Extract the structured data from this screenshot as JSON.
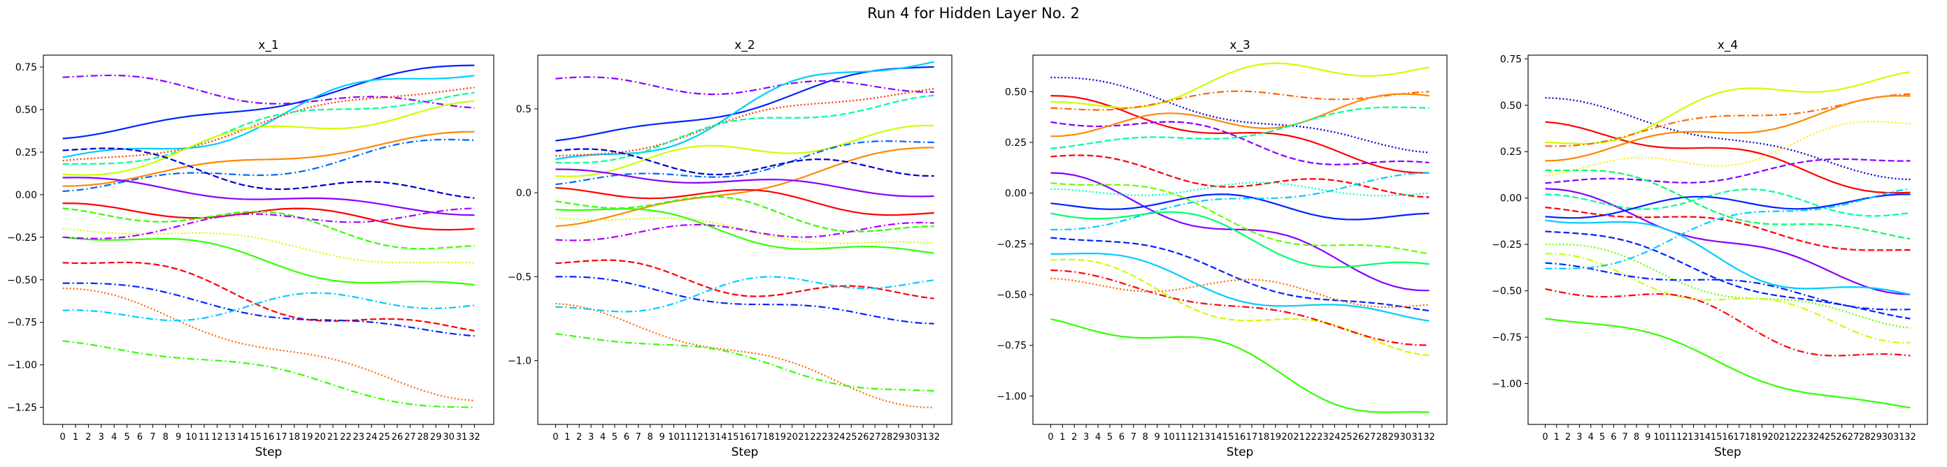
{
  "figure": {
    "suptitle": "Run 4 for Hidden Layer No. 2"
  },
  "style": {
    "palette": [
      "#0000ff",
      "#0022ff",
      "#0066ff",
      "#0099ff",
      "#00ccff",
      "#00ffcc",
      "#00ff99",
      "#00ff66",
      "#33ff00",
      "#66ff00",
      "#99ff00",
      "#ccff00",
      "#ffee00",
      "#ffcc00",
      "#ff9900",
      "#ff6600",
      "#ff3300",
      "#ff0000",
      "#aa00ff",
      "#8800ff"
    ],
    "dashes": [
      "solid",
      "dashed",
      "dotted",
      "dashdot"
    ]
  },
  "chart_data": [
    {
      "type": "line",
      "title": "x_1",
      "xlabel": "Step",
      "ylabel": "",
      "x": [
        0,
        1,
        2,
        3,
        4,
        5,
        6,
        7,
        8,
        9,
        10,
        11,
        12,
        13,
        14,
        15,
        16,
        17,
        18,
        19,
        20,
        21,
        22,
        23,
        24,
        25,
        26,
        27,
        28,
        29,
        30,
        31,
        32
      ],
      "xlim": [
        -1.5,
        33.5
      ],
      "ylim": [
        -1.35,
        0.82
      ],
      "yticks": [
        0.75,
        0.5,
        0.25,
        0.0,
        -0.25,
        -0.5,
        -0.75,
        -1.0,
        -1.25
      ],
      "ytick_labels": [
        "0.75",
        "0.50",
        "0.25",
        "0.00",
        "−0.25",
        "−0.50",
        "−0.75",
        "−1.00",
        "−1.25"
      ],
      "series": [
        {
          "start": 0.33,
          "end": 0.76,
          "color": "#0022ff",
          "dash": "solid"
        },
        {
          "start": 0.69,
          "end": 0.51,
          "color": "#8800ff",
          "dash": "dashdot"
        },
        {
          "start": 0.22,
          "end": 0.7,
          "color": "#00ccff",
          "dash": "solid"
        },
        {
          "start": 0.2,
          "end": 0.63,
          "color": "#ff3300",
          "dash": "dotted"
        },
        {
          "start": 0.18,
          "end": 0.6,
          "color": "#00ff99",
          "dash": "dashed"
        },
        {
          "start": 0.12,
          "end": 0.55,
          "color": "#ccff00",
          "dash": "solid"
        },
        {
          "start": 0.05,
          "end": 0.37,
          "color": "#ff8800",
          "dash": "solid"
        },
        {
          "start": 0.02,
          "end": 0.32,
          "color": "#0066ff",
          "dash": "dashdot"
        },
        {
          "start": 0.26,
          "end": -0.02,
          "color": "#0000cc",
          "dash": "dashed"
        },
        {
          "start": 0.1,
          "end": -0.12,
          "color": "#8800ff",
          "dash": "solid"
        },
        {
          "start": -0.05,
          "end": -0.2,
          "color": "#ff0000",
          "dash": "solid"
        },
        {
          "start": -0.08,
          "end": -0.3,
          "color": "#33ff00",
          "dash": "dashed"
        },
        {
          "start": -0.2,
          "end": -0.4,
          "color": "#ccff00",
          "dash": "dotted"
        },
        {
          "start": -0.25,
          "end": -0.53,
          "color": "#33ff00",
          "dash": "solid"
        },
        {
          "start": -0.4,
          "end": -0.8,
          "color": "#ff0000",
          "dash": "dashed"
        },
        {
          "start": -0.52,
          "end": -0.83,
          "color": "#0022ff",
          "dash": "dashdot"
        },
        {
          "start": -0.55,
          "end": -1.21,
          "color": "#ff6600",
          "dash": "dotted"
        },
        {
          "start": -0.68,
          "end": -0.65,
          "color": "#00ccff",
          "dash": "dashdot"
        },
        {
          "start": -0.86,
          "end": -1.25,
          "color": "#33ff00",
          "dash": "dashdot"
        },
        {
          "start": -0.25,
          "end": -0.08,
          "color": "#aa00ff",
          "dash": "dashdot"
        }
      ]
    },
    {
      "type": "line",
      "title": "x_2",
      "xlabel": "Step",
      "ylabel": "",
      "x": [
        0,
        1,
        2,
        3,
        4,
        5,
        6,
        7,
        8,
        9,
        10,
        11,
        12,
        13,
        14,
        15,
        16,
        17,
        18,
        19,
        20,
        21,
        22,
        23,
        24,
        25,
        26,
        27,
        28,
        29,
        30,
        31,
        32
      ],
      "xlim": [
        -1.5,
        33.5
      ],
      "ylim": [
        -1.38,
        0.82
      ],
      "yticks": [
        0.5,
        0.0,
        -0.5,
        -1.0
      ],
      "ytick_labels": [
        "0.5",
        "0.0",
        "−0.5",
        "−1.0"
      ],
      "series": [
        {
          "start": 0.31,
          "end": 0.75,
          "color": "#0022ff",
          "dash": "solid"
        },
        {
          "start": 0.68,
          "end": 0.6,
          "color": "#8800ff",
          "dash": "dashdot"
        },
        {
          "start": 0.2,
          "end": 0.78,
          "color": "#00ccff",
          "dash": "solid"
        },
        {
          "start": 0.22,
          "end": 0.62,
          "color": "#ff3300",
          "dash": "dotted"
        },
        {
          "start": 0.18,
          "end": 0.58,
          "color": "#00ff99",
          "dash": "dashed"
        },
        {
          "start": 0.1,
          "end": 0.4,
          "color": "#ccff00",
          "dash": "solid"
        },
        {
          "start": -0.2,
          "end": 0.27,
          "color": "#ff8800",
          "dash": "solid"
        },
        {
          "start": 0.05,
          "end": 0.3,
          "color": "#0066ff",
          "dash": "dashdot"
        },
        {
          "start": 0.25,
          "end": 0.1,
          "color": "#0000cc",
          "dash": "dashed"
        },
        {
          "start": 0.14,
          "end": -0.02,
          "color": "#8800ff",
          "dash": "solid"
        },
        {
          "start": 0.03,
          "end": -0.12,
          "color": "#ff0000",
          "dash": "solid"
        },
        {
          "start": -0.05,
          "end": -0.2,
          "color": "#33ff00",
          "dash": "dashed"
        },
        {
          "start": -0.15,
          "end": -0.3,
          "color": "#ccff00",
          "dash": "dotted"
        },
        {
          "start": -0.1,
          "end": -0.36,
          "color": "#33ff00",
          "dash": "solid"
        },
        {
          "start": -0.42,
          "end": -0.63,
          "color": "#ff0000",
          "dash": "dashed"
        },
        {
          "start": -0.5,
          "end": -0.78,
          "color": "#0022ff",
          "dash": "dashdot"
        },
        {
          "start": -0.66,
          "end": -1.28,
          "color": "#ff6600",
          "dash": "dotted"
        },
        {
          "start": -0.68,
          "end": -0.52,
          "color": "#00ccff",
          "dash": "dashdot"
        },
        {
          "start": -0.84,
          "end": -1.18,
          "color": "#33ff00",
          "dash": "dashdot"
        },
        {
          "start": -0.28,
          "end": -0.18,
          "color": "#aa00ff",
          "dash": "dashdot"
        }
      ]
    },
    {
      "type": "line",
      "title": "x_3",
      "xlabel": "Step",
      "ylabel": "",
      "x": [
        0,
        1,
        2,
        3,
        4,
        5,
        6,
        7,
        8,
        9,
        10,
        11,
        12,
        13,
        14,
        15,
        16,
        17,
        18,
        19,
        20,
        21,
        22,
        23,
        24,
        25,
        26,
        27,
        28,
        29,
        30,
        31,
        32
      ],
      "xlim": [
        -1.5,
        33.5
      ],
      "ylim": [
        -1.14,
        0.68
      ],
      "yticks": [
        0.5,
        0.25,
        0.0,
        -0.25,
        -0.5,
        -0.75,
        -1.0
      ],
      "ytick_labels": [
        "0.50",
        "0.25",
        "0.00",
        "−0.25",
        "−0.50",
        "−0.75",
        "−1.00"
      ],
      "series": [
        {
          "start": 0.57,
          "end": 0.2,
          "color": "#0000cc",
          "dash": "dotted"
        },
        {
          "start": 0.48,
          "end": 0.1,
          "color": "#ff0000",
          "dash": "solid"
        },
        {
          "start": 0.45,
          "end": 0.62,
          "color": "#ccff00",
          "dash": "solid"
        },
        {
          "start": 0.42,
          "end": 0.5,
          "color": "#ff6600",
          "dash": "dashdot"
        },
        {
          "start": 0.35,
          "end": 0.15,
          "color": "#8800ff",
          "dash": "dashed"
        },
        {
          "start": 0.28,
          "end": 0.48,
          "color": "#ff8800",
          "dash": "solid"
        },
        {
          "start": 0.22,
          "end": 0.42,
          "color": "#00ff99",
          "dash": "dashed"
        },
        {
          "start": 0.18,
          "end": -0.02,
          "color": "#ff0000",
          "dash": "dashed"
        },
        {
          "start": 0.1,
          "end": -0.48,
          "color": "#8800ff",
          "dash": "solid"
        },
        {
          "start": 0.02,
          "end": 0.0,
          "color": "#00ffcc",
          "dash": "dotted"
        },
        {
          "start": -0.05,
          "end": -0.1,
          "color": "#0022ff",
          "dash": "solid"
        },
        {
          "start": -0.1,
          "end": -0.35,
          "color": "#00ff66",
          "dash": "solid"
        },
        {
          "start": -0.22,
          "end": -0.58,
          "color": "#0022ff",
          "dash": "dashed"
        },
        {
          "start": -0.3,
          "end": -0.63,
          "color": "#00ccff",
          "dash": "solid"
        },
        {
          "start": -0.33,
          "end": -0.8,
          "color": "#ccff00",
          "dash": "dashed"
        },
        {
          "start": -0.38,
          "end": -0.75,
          "color": "#ff0000",
          "dash": "dashdot"
        },
        {
          "start": -0.42,
          "end": -0.55,
          "color": "#ff6600",
          "dash": "dotted"
        },
        {
          "start": -0.62,
          "end": -1.08,
          "color": "#33ff00",
          "dash": "solid"
        },
        {
          "start": -0.18,
          "end": 0.1,
          "color": "#00ccff",
          "dash": "dashdot"
        },
        {
          "start": 0.05,
          "end": -0.3,
          "color": "#66ff00",
          "dash": "dashed"
        }
      ]
    },
    {
      "type": "line",
      "title": "x_4",
      "xlabel": "Step",
      "ylabel": "",
      "x": [
        0,
        1,
        2,
        3,
        4,
        5,
        6,
        7,
        8,
        9,
        10,
        11,
        12,
        13,
        14,
        15,
        16,
        17,
        18,
        19,
        20,
        21,
        22,
        23,
        24,
        25,
        26,
        27,
        28,
        29,
        30,
        31,
        32
      ],
      "xlim": [
        -1.5,
        33.5
      ],
      "ylim": [
        -1.22,
        0.77
      ],
      "yticks": [
        0.75,
        0.5,
        0.25,
        0.0,
        -0.25,
        -0.5,
        -0.75,
        -1.0
      ],
      "ytick_labels": [
        "0.75",
        "0.50",
        "0.25",
        "0.00",
        "−0.25",
        "−0.50",
        "−0.75",
        "−1.00"
      ],
      "series": [
        {
          "start": 0.54,
          "end": 0.1,
          "color": "#0000cc",
          "dash": "dotted"
        },
        {
          "start": 0.41,
          "end": 0.03,
          "color": "#ff0000",
          "dash": "solid"
        },
        {
          "start": 0.3,
          "end": 0.68,
          "color": "#ccff00",
          "dash": "solid"
        },
        {
          "start": 0.28,
          "end": 0.56,
          "color": "#ff6600",
          "dash": "dashdot"
        },
        {
          "start": 0.2,
          "end": 0.55,
          "color": "#ff8800",
          "dash": "solid"
        },
        {
          "start": 0.12,
          "end": 0.4,
          "color": "#ffee00",
          "dash": "dotted"
        },
        {
          "start": 0.08,
          "end": 0.2,
          "color": "#8800ff",
          "dash": "dashed"
        },
        {
          "start": 0.05,
          "end": -0.52,
          "color": "#8800ff",
          "dash": "solid"
        },
        {
          "start": 0.02,
          "end": -0.08,
          "color": "#00ff99",
          "dash": "dashed"
        },
        {
          "start": -0.05,
          "end": -0.28,
          "color": "#ff0000",
          "dash": "dashed"
        },
        {
          "start": -0.1,
          "end": 0.02,
          "color": "#0022ff",
          "dash": "solid"
        },
        {
          "start": -0.12,
          "end": -0.52,
          "color": "#00ccff",
          "dash": "solid"
        },
        {
          "start": -0.18,
          "end": -0.65,
          "color": "#0022ff",
          "dash": "dashed"
        },
        {
          "start": -0.25,
          "end": -0.7,
          "color": "#66ff00",
          "dash": "dotted"
        },
        {
          "start": -0.3,
          "end": -0.78,
          "color": "#ccff00",
          "dash": "dashdot"
        },
        {
          "start": -0.35,
          "end": -0.6,
          "color": "#0022ff",
          "dash": "dashdot"
        },
        {
          "start": -0.38,
          "end": 0.05,
          "color": "#00ccff",
          "dash": "dashdot"
        },
        {
          "start": -0.49,
          "end": -0.85,
          "color": "#ff0000",
          "dash": "dashdot"
        },
        {
          "start": -0.65,
          "end": -1.13,
          "color": "#33ff00",
          "dash": "solid"
        },
        {
          "start": 0.15,
          "end": -0.22,
          "color": "#00ff66",
          "dash": "dashed"
        }
      ]
    }
  ]
}
